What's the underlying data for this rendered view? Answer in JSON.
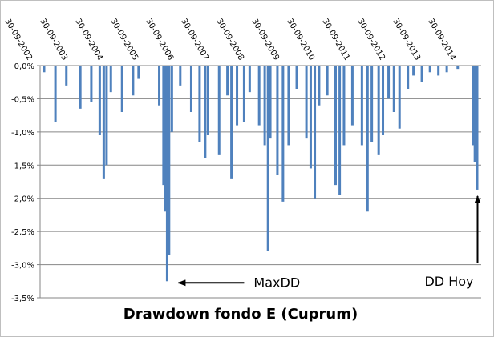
{
  "chart_data": {
    "type": "bar",
    "title": "Drawdown fondo E (Cuprum)",
    "xlabel": "",
    "ylabel": "",
    "ylim": [
      -3.5,
      0
    ],
    "y_ticks": [
      "0,0%",
      "-0,5%",
      "-1,0%",
      "-1,5%",
      "-2,0%",
      "-2,5%",
      "-3,0%",
      "-3,5%"
    ],
    "y_tick_values": [
      0,
      -0.5,
      -1.0,
      -1.5,
      -2.0,
      -2.5,
      -3.0,
      -3.5
    ],
    "x_ticks": [
      "30-09-2002",
      "30-09-2003",
      "30-09-2004",
      "30-09-2005",
      "30-09-2006",
      "30-09-2007",
      "30-09-2008",
      "30-09-2009",
      "30-09-2010",
      "30-09-2011",
      "30-09-2012",
      "30-09-2013",
      "30-09-2014"
    ],
    "x_range": [
      "30-09-2002",
      "30-09-2015"
    ],
    "grid": true,
    "bar_color": "#4f81bd",
    "series": [
      {
        "values": [
          {
            "x": "30-09-2002",
            "y": -0.1
          },
          {
            "x": "01-02-2003",
            "y": -0.85
          },
          {
            "x": "01-06-2003",
            "y": -0.3
          },
          {
            "x": "01-11-2003",
            "y": -0.65
          },
          {
            "x": "01-03-2004",
            "y": -0.55
          },
          {
            "x": "01-06-2004",
            "y": -1.05
          },
          {
            "x": "15-07-2004",
            "y": -1.7
          },
          {
            "x": "15-08-2004",
            "y": -1.5
          },
          {
            "x": "01-10-2004",
            "y": -0.4
          },
          {
            "x": "01-02-2005",
            "y": -0.7
          },
          {
            "x": "01-06-2005",
            "y": -0.45
          },
          {
            "x": "01-08-2005",
            "y": -0.2
          },
          {
            "x": "15-03-2006",
            "y": -0.6
          },
          {
            "x": "01-05-2006",
            "y": -1.8
          },
          {
            "x": "20-05-2006",
            "y": -2.2
          },
          {
            "x": "10-06-2006",
            "y": -3.25
          },
          {
            "x": "01-07-2006",
            "y": -2.85
          },
          {
            "x": "01-08-2006",
            "y": -1.0
          },
          {
            "x": "01-11-2006",
            "y": -0.3
          },
          {
            "x": "01-03-2007",
            "y": -0.7
          },
          {
            "x": "01-06-2007",
            "y": -1.15
          },
          {
            "x": "01-08-2007",
            "y": -1.4
          },
          {
            "x": "01-09-2007",
            "y": -1.05
          },
          {
            "x": "01-01-2008",
            "y": -1.35
          },
          {
            "x": "01-04-2008",
            "y": -0.45
          },
          {
            "x": "15-05-2008",
            "y": -1.7
          },
          {
            "x": "15-07-2008",
            "y": -0.9
          },
          {
            "x": "01-10-2008",
            "y": -0.85
          },
          {
            "x": "01-12-2008",
            "y": -0.4
          },
          {
            "x": "15-03-2009",
            "y": -0.9
          },
          {
            "x": "15-05-2009",
            "y": -1.2
          },
          {
            "x": "20-06-2009",
            "y": -2.8
          },
          {
            "x": "15-07-2009",
            "y": -1.1
          },
          {
            "x": "01-10-2009",
            "y": -1.65
          },
          {
            "x": "01-12-2009",
            "y": -2.05
          },
          {
            "x": "01-02-2010",
            "y": -1.2
          },
          {
            "x": "01-05-2010",
            "y": -0.35
          },
          {
            "x": "15-08-2010",
            "y": -1.1
          },
          {
            "x": "01-10-2010",
            "y": -1.55
          },
          {
            "x": "15-11-2010",
            "y": -2.0
          },
          {
            "x": "01-01-2011",
            "y": -0.6
          },
          {
            "x": "01-04-2011",
            "y": -0.45
          },
          {
            "x": "01-07-2011",
            "y": -1.8
          },
          {
            "x": "15-08-2011",
            "y": -1.95
          },
          {
            "x": "01-10-2011",
            "y": -1.2
          },
          {
            "x": "01-01-2012",
            "y": -0.9
          },
          {
            "x": "15-04-2012",
            "y": -1.2
          },
          {
            "x": "15-06-2012",
            "y": -2.2
          },
          {
            "x": "01-08-2012",
            "y": -1.15
          },
          {
            "x": "15-10-2012",
            "y": -1.35
          },
          {
            "x": "01-12-2012",
            "y": -1.05
          },
          {
            "x": "01-02-2013",
            "y": -0.5
          },
          {
            "x": "01-04-2013",
            "y": -0.7
          },
          {
            "x": "01-06-2013",
            "y": -0.95
          },
          {
            "x": "01-09-2013",
            "y": -0.35
          },
          {
            "x": "01-11-2013",
            "y": -0.15
          },
          {
            "x": "01-02-2014",
            "y": -0.25
          },
          {
            "x": "01-05-2014",
            "y": -0.1
          },
          {
            "x": "01-08-2014",
            "y": -0.15
          },
          {
            "x": "01-11-2014",
            "y": -0.1
          },
          {
            "x": "01-03-2015",
            "y": -0.05
          },
          {
            "x": "20-08-2015",
            "y": -1.2
          },
          {
            "x": "05-09-2015",
            "y": -1.45
          },
          {
            "x": "30-09-2015",
            "y": -1.87
          }
        ]
      }
    ],
    "annotations": [
      {
        "text": "MaxDD",
        "points_to": {
          "x": "10-06-2006",
          "y": -3.25
        }
      },
      {
        "text": "DD Hoy",
        "points_to": {
          "x": "30-09-2015",
          "y": -1.87
        }
      }
    ]
  }
}
